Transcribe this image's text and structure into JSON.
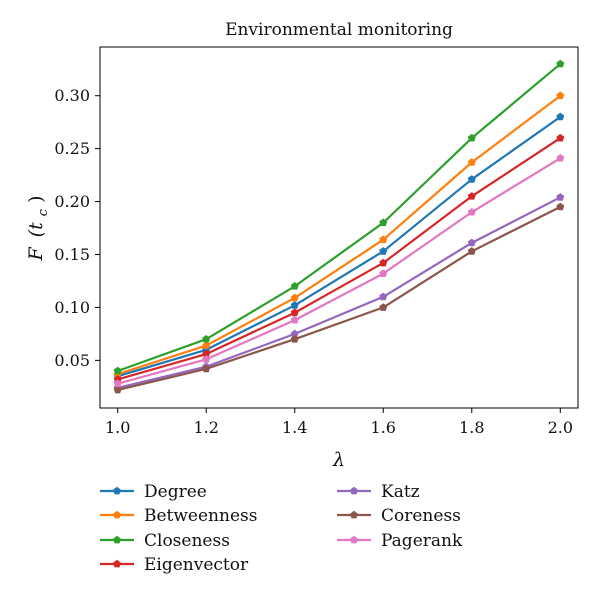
{
  "chart_data": {
    "type": "line",
    "title": "Environmental monitoring",
    "xlabel": "λ",
    "ylabel_main": "F",
    "ylabel_open": "(t",
    "ylabel_sub": "c",
    "ylabel_close": ")",
    "x": [
      1.0,
      1.2,
      1.4,
      1.6,
      1.8,
      2.0
    ],
    "x_tick_labels": [
      "1.0",
      "1.2",
      "1.4",
      "1.6",
      "1.8",
      "2.0"
    ],
    "xlim": [
      0.96,
      2.04
    ],
    "y_ticks": [
      0.05,
      0.1,
      0.15,
      0.2,
      0.25,
      0.3
    ],
    "y_tick_labels": [
      "0.05",
      "0.10",
      "0.15",
      "0.20",
      "0.25",
      "0.30"
    ],
    "ylim": [
      0.005,
      0.346
    ],
    "grid": false,
    "legend_position": "below",
    "series": [
      {
        "name": "Degree",
        "color": "#1f77b4",
        "values": [
          0.035,
          0.06,
          0.102,
          0.153,
          0.221,
          0.28
        ]
      },
      {
        "name": "Betweenness",
        "color": "#ff7f0e",
        "values": [
          0.037,
          0.064,
          0.109,
          0.164,
          0.237,
          0.3
        ]
      },
      {
        "name": "Closeness",
        "color": "#2ca02c",
        "values": [
          0.04,
          0.07,
          0.12,
          0.18,
          0.26,
          0.33
        ]
      },
      {
        "name": "Eigenvector",
        "color": "#d62728",
        "values": [
          0.032,
          0.056,
          0.095,
          0.142,
          0.205,
          0.26
        ]
      },
      {
        "name": "Katz",
        "color": "#9467bd",
        "values": [
          0.024,
          0.044,
          0.075,
          0.11,
          0.161,
          0.204
        ]
      },
      {
        "name": "Coreness",
        "color": "#8c564b",
        "values": [
          0.022,
          0.042,
          0.07,
          0.1,
          0.153,
          0.195
        ]
      },
      {
        "name": "Pagerank",
        "color": "#e377c2",
        "values": [
          0.028,
          0.051,
          0.088,
          0.132,
          0.19,
          0.241
        ]
      }
    ]
  }
}
